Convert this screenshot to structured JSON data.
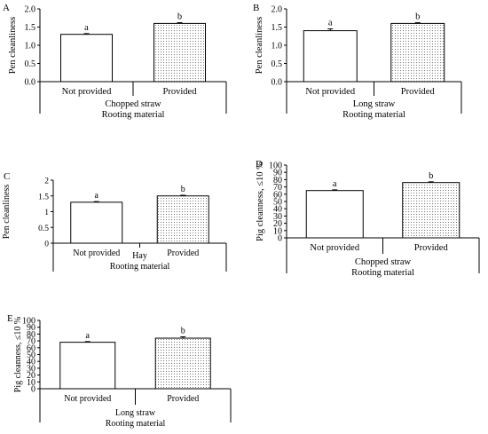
{
  "chart_data": [
    {
      "panel_label": "A",
      "type": "bar",
      "categories": [
        "Not provided",
        "Provided"
      ],
      "values": [
        1.3,
        1.6
      ],
      "errors": [
        0.02,
        0.02
      ],
      "letters": [
        "a",
        "b"
      ],
      "ylabel": "Pen cleanliness",
      "group_label": "Chopped straw",
      "xlabel": "Rooting material",
      "ylim": [
        0,
        2
      ],
      "yticks": [
        "0.0",
        "0.5",
        "1.0",
        "1.5",
        "2.0"
      ],
      "fills": [
        "plain",
        "dotted"
      ]
    },
    {
      "panel_label": "B",
      "type": "bar",
      "categories": [
        "Not provided",
        "Provided"
      ],
      "values": [
        1.4,
        1.6
      ],
      "errors": [
        0.05,
        0.02
      ],
      "letters": [
        "a",
        "b"
      ],
      "ylabel": "Pen cleanliness",
      "group_label": "Long straw",
      "xlabel": "Rooting material",
      "ylim": [
        0,
        2
      ],
      "yticks": [
        "0.0",
        "0.5",
        "1.0",
        "1.5",
        "2.0"
      ],
      "fills": [
        "plain",
        "dotted"
      ]
    },
    {
      "panel_label": "C",
      "type": "bar",
      "categories": [
        "Not provided",
        "Provided"
      ],
      "values": [
        1.3,
        1.5
      ],
      "errors": [
        0.02,
        0.02
      ],
      "letters": [
        "a",
        "b"
      ],
      "ylabel": "Pen cleanliness",
      "group_label": "Hay",
      "xlabel": "Rooting material",
      "ylim": [
        0,
        2
      ],
      "yticks": [
        "0",
        "0.5",
        "1",
        "1.5",
        "2"
      ],
      "fills": [
        "plain",
        "dotted"
      ]
    },
    {
      "panel_label": "D",
      "type": "bar",
      "categories": [
        "Not provided",
        "Provided"
      ],
      "values": [
        65,
        76
      ],
      "errors": [
        1,
        1
      ],
      "letters": [
        "a",
        "b"
      ],
      "ylabel": "Pig cleanness, ≤10 %",
      "group_label": "Chopped straw",
      "xlabel": "Rooting material",
      "ylim": [
        0,
        100
      ],
      "yticks": [
        "0",
        "10",
        "20",
        "30",
        "40",
        "50",
        "60",
        "70",
        "80",
        "90",
        "100"
      ],
      "fills": [
        "plain",
        "dotted"
      ]
    },
    {
      "panel_label": "E",
      "type": "bar",
      "categories": [
        "Not provided",
        "Provided"
      ],
      "values": [
        68,
        74
      ],
      "errors": [
        1,
        2
      ],
      "letters": [
        "a",
        "b"
      ],
      "ylabel": "Pig cleanness, ≤10 %",
      "group_label": "Long straw",
      "xlabel": "Rooting material",
      "ylim": [
        0,
        100
      ],
      "yticks": [
        "0",
        "10",
        "20",
        "30",
        "40",
        "50",
        "60",
        "70",
        "80",
        "90",
        "100"
      ],
      "fills": [
        "plain",
        "dotted"
      ]
    }
  ]
}
